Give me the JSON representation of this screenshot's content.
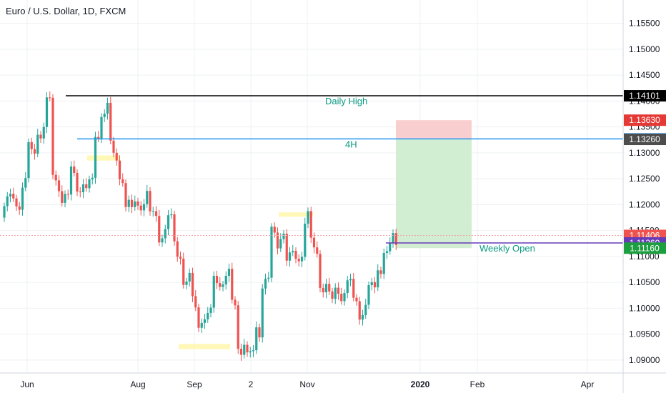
{
  "header": {
    "title": "Euro / U.S. Dollar, 1D, FXCM"
  },
  "colors": {
    "up": "#26a69a",
    "down": "#ef5350",
    "grid": "#eef0f3",
    "daily_high_line": "#000000",
    "h4_line": "#2196f3",
    "weekly_open_line": "#673ab7",
    "annotation_text": "#089981",
    "stop_zone": "#f8c9c9",
    "target_zone": "#cdeccd",
    "highlight": "#fff59d"
  },
  "chart_data": {
    "type": "candlestick",
    "title": "Euro / U.S. Dollar, 1D, FXCM",
    "ylim": [
      1.0875,
      1.1595
    ],
    "y_ticks": [
      "1.15500",
      "1.15000",
      "1.14500",
      "1.14000",
      "1.13500",
      "1.13000",
      "1.12500",
      "1.12000",
      "1.11500",
      "1.11000",
      "1.10500",
      "1.10000",
      "1.09500",
      "1.09000"
    ],
    "x_ticks": [
      {
        "label": "Jun",
        "x": 38
      },
      {
        "label": "Aug",
        "x": 193
      },
      {
        "label": "Sep",
        "x": 272
      },
      {
        "label": "2",
        "x": 351
      },
      {
        "label": "Nov",
        "x": 430
      },
      {
        "label": "2020",
        "x": 588
      },
      {
        "label": "Feb",
        "x": 668
      },
      {
        "label": "Apr",
        "x": 822
      }
    ],
    "grid": true,
    "series_seed": [
      [
        1.1205,
        1.1175
      ],
      [
        1.1218,
        1.1195
      ],
      [
        1.124,
        1.127
      ],
      [
        1.129,
        1.133
      ],
      [
        1.134,
        1.1365
      ],
      [
        1.1383,
        1.1386
      ],
      [
        1.125,
        1.1225
      ],
      [
        1.12,
        1.1215
      ],
      [
        1.126,
        1.1262
      ],
      [
        1.1247,
        1.126
      ],
      [
        1.1208,
        1.1268
      ],
      [
        1.1332,
        1.1345
      ],
      [
        1.141,
        1.1331
      ],
      [
        1.13,
        1.128
      ],
      [
        1.1274,
        1.1248
      ],
      [
        1.1206,
        1.1189
      ],
      [
        1.1219,
        1.1217
      ],
      [
        1.1219,
        1.1199
      ],
      [
        1.1172,
        1.1165
      ],
      [
        1.113,
        1.1145
      ],
      [
        1.1154,
        1.1174
      ],
      [
        1.1138,
        1.111
      ],
      [
        1.1072,
        1.1049
      ],
      [
        1.1013,
        1.1012
      ],
      [
        1.0992,
        1.0962
      ],
      [
        1.0943,
        1.099
      ],
      [
        1.1023,
        1.1075
      ],
      [
        1.1062,
        1.1062
      ],
      [
        1.1031,
        1.1002
      ],
      [
        1.0945,
        1.094
      ],
      [
        1.0915,
        1.089
      ],
      [
        1.0924,
        1.0985
      ],
      [
        1.1015,
        1.1066
      ],
      [
        1.111,
        1.1161
      ],
      [
        1.1175,
        1.1143
      ],
      [
        1.1114,
        1.109
      ],
      [
        1.1098,
        1.112
      ],
      [
        1.1154,
        1.1178
      ],
      [
        1.1124,
        1.108
      ],
      [
        1.1054,
        1.1033
      ],
      [
        1.101,
        1.102
      ],
      [
        1.1048,
        1.1048
      ],
      [
        1.1062,
        1.1031
      ],
      [
        1.1012,
        1.1002
      ],
      [
        1.0991,
        1.099
      ],
      [
        1.1003,
        1.1046
      ],
      [
        1.1078,
        1.1098
      ],
      [
        1.114,
        1.11
      ],
      [
        1.1135,
        1.114
      ]
    ],
    "annotations": {
      "daily_high": {
        "label": "Daily High",
        "value": 1.14101,
        "tag": "1.14101"
      },
      "h4": {
        "label": "4H",
        "value": 1.13269,
        "tag": "1.13269"
      },
      "weekly_open": {
        "label": "Weekly Open",
        "value": 1.1126,
        "tag": "1.11260"
      },
      "stop": {
        "value": 1.1363,
        "tag": "1.13630"
      },
      "entry": {
        "value": 1.1326,
        "tag": "1.13260"
      },
      "current": {
        "value": 1.11406,
        "tag": "1.11406"
      },
      "target": {
        "value": 1.1116,
        "tag": "1.11160"
      }
    }
  }
}
